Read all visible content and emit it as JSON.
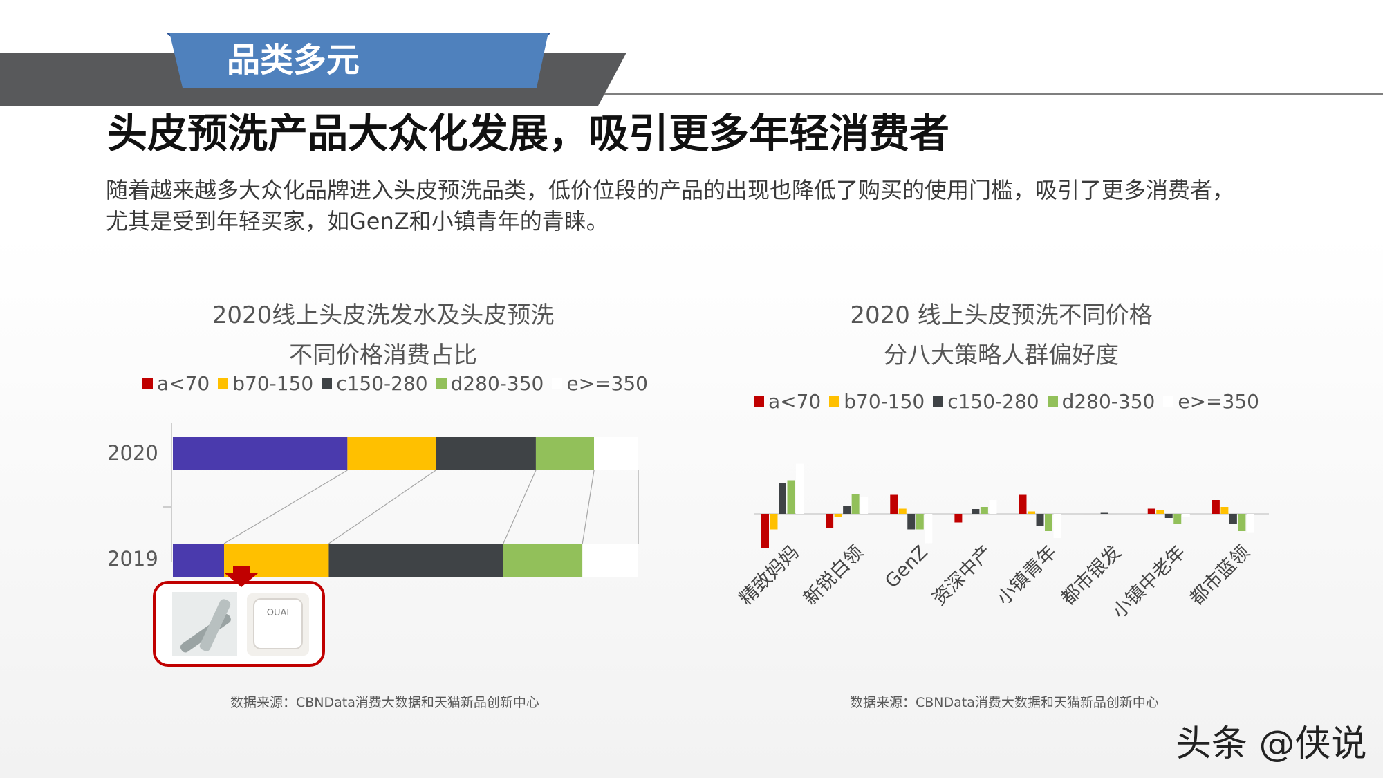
{
  "slide": {
    "section_tag": "品类多元",
    "title": "头皮预洗产品大众化发展，吸引更多年轻消费者",
    "description_line1": "随着越来越多大众化品牌进入头皮预洗品类，低价位段的产品的出现也降低了购买的使用门槛，吸引了更多消费者，",
    "description_line2": "尤其是受到年轻买家，如GenZ和小镇青年的青睐。",
    "watermark": "头条 @侠说",
    "product_logo_text": "OUAI"
  },
  "theme": {
    "header_bar": "#58595b",
    "tag_blue": "#4f81bd",
    "tag_blue_dark": "#2f5597",
    "highlight_red": "#c00000"
  },
  "chart_data": [
    {
      "type": "bar",
      "orientation": "horizontal-stacked-100",
      "title_line1": "2020线上头皮洗发水及头皮预洗",
      "title_line2": "不同价格消费占比",
      "legend_position": "top",
      "categories": [
        "2020",
        "2019"
      ],
      "series": [
        {
          "name": "a<70",
          "legend_color": "#c00000",
          "bar_color": "#4a3aad",
          "values": [
            0.375,
            0.11
          ]
        },
        {
          "name": "b70-150",
          "legend_color": "#ffc000",
          "bar_color": "#ffc000",
          "values": [
            0.19,
            0.225
          ]
        },
        {
          "name": "c150-280",
          "legend_color": "#3f4346",
          "bar_color": "#3f4346",
          "values": [
            0.215,
            0.375
          ]
        },
        {
          "name": "d280-350",
          "legend_color": "#92c05a",
          "bar_color": "#92c05a",
          "values": [
            0.125,
            0.17
          ]
        },
        {
          "name": "e>=350",
          "legend_color": "#ffffff",
          "bar_color": "#ffffff",
          "values": [
            0.095,
            0.12
          ]
        }
      ],
      "source": "数据来源：CBNData消费大数据和天猫新品创新中心"
    },
    {
      "type": "bar",
      "orientation": "vertical-grouped",
      "title_line1": "2020 线上头皮预洗不同价格",
      "title_line2": "分八大策略人群偏好度",
      "legend_position": "top",
      "ylim": [
        -1.5,
        2.5
      ],
      "grid": false,
      "categories": [
        "精致妈妈",
        "新锐白领",
        "GenZ",
        "资深中产",
        "小镇青年",
        "都市银发",
        "小镇中老年",
        "都市蓝领"
      ],
      "series": [
        {
          "name": "a<70",
          "color": "#c00000",
          "values": [
            -1.0,
            -0.4,
            0.55,
            -0.25,
            0.55,
            0.0,
            0.15,
            0.4
          ]
        },
        {
          "name": "b70-150",
          "color": "#ffc000",
          "values": [
            -0.45,
            -0.1,
            0.15,
            0.0,
            0.07,
            0.0,
            0.1,
            0.2
          ]
        },
        {
          "name": "c150-280",
          "color": "#3f4346",
          "values": [
            0.9,
            0.22,
            -0.45,
            0.14,
            -0.35,
            0.03,
            -0.12,
            -0.3
          ]
        },
        {
          "name": "d280-350",
          "color": "#92c05a",
          "values": [
            0.97,
            0.58,
            -0.45,
            0.2,
            -0.5,
            0.0,
            -0.28,
            -0.5
          ]
        },
        {
          "name": "e>=350",
          "color": "#ffffff",
          "values": [
            1.45,
            0.48,
            -0.85,
            0.4,
            -0.7,
            0.0,
            -0.1,
            -0.55
          ]
        }
      ],
      "source": "数据来源：CBNData消费大数据和天猫新品创新中心"
    }
  ]
}
